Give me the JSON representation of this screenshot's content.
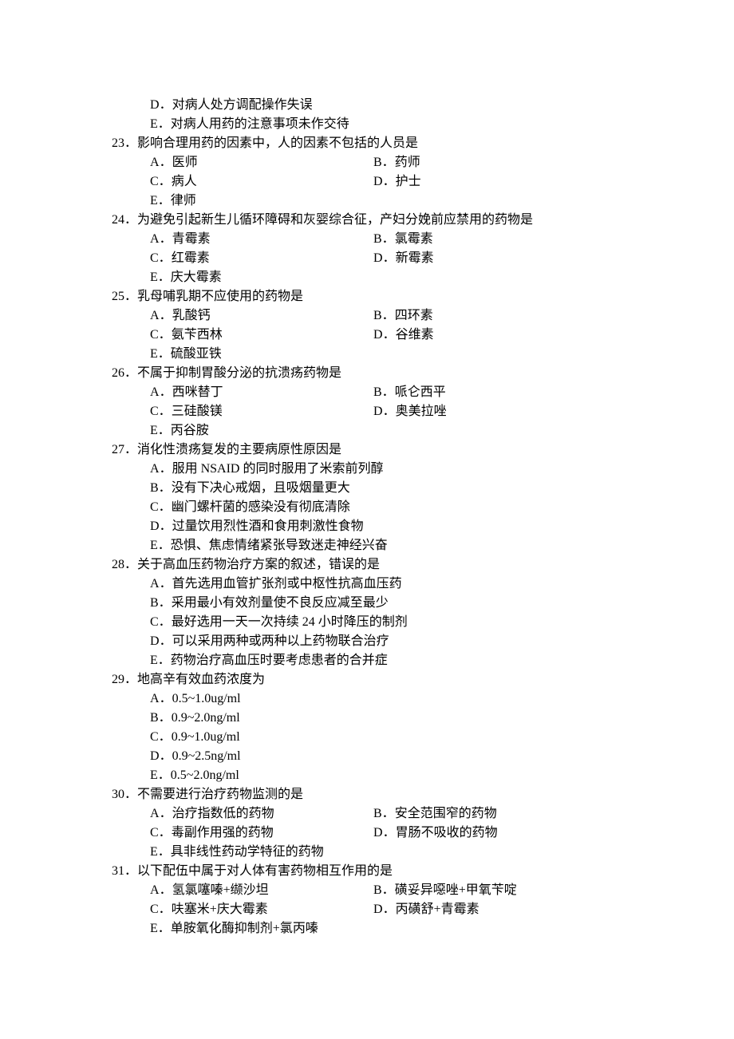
{
  "pre_options": [
    {
      "letter": "D",
      "text": "对病人处方调配操作失误"
    },
    {
      "letter": "E",
      "text": "对病人用药的注意事项未作交待"
    }
  ],
  "questions": [
    {
      "num": "23",
      "stem": "影响合理用药的因素中，人的因素不包括的人员是",
      "layout": "two",
      "options": [
        {
          "letter": "A",
          "text": "医师"
        },
        {
          "letter": "B",
          "text": "药师"
        },
        {
          "letter": "C",
          "text": "病人"
        },
        {
          "letter": "D",
          "text": "护士"
        },
        {
          "letter": "E",
          "text": "律师"
        }
      ]
    },
    {
      "num": "24",
      "stem": "为避免引起新生儿循环障碍和灰婴综合征，产妇分娩前应禁用的药物是",
      "layout": "two",
      "options": [
        {
          "letter": "A",
          "text": "青霉素"
        },
        {
          "letter": "B",
          "text": "氯霉素"
        },
        {
          "letter": "C",
          "text": "红霉素"
        },
        {
          "letter": "D",
          "text": "新霉素"
        },
        {
          "letter": "E",
          "text": "庆大霉素"
        }
      ]
    },
    {
      "num": "25",
      "stem": "乳母哺乳期不应使用的药物是",
      "layout": "two",
      "options": [
        {
          "letter": "A",
          "text": "乳酸钙"
        },
        {
          "letter": "B",
          "text": "四环素"
        },
        {
          "letter": "C",
          "text": "氨苄西林"
        },
        {
          "letter": "D",
          "text": "谷维素"
        },
        {
          "letter": "E",
          "text": "硫酸亚铁"
        }
      ]
    },
    {
      "num": "26",
      "stem": "不属于抑制胃酸分泌的抗溃疡药物是",
      "layout": "two",
      "options": [
        {
          "letter": "A",
          "text": "西咪替丁"
        },
        {
          "letter": "B",
          "text": "哌仑西平"
        },
        {
          "letter": "C",
          "text": "三硅酸镁"
        },
        {
          "letter": "D",
          "text": "奥美拉唑"
        },
        {
          "letter": "E",
          "text": "丙谷胺"
        }
      ]
    },
    {
      "num": "27",
      "stem": "消化性溃疡复发的主要病原性原因是",
      "layout": "one",
      "options": [
        {
          "letter": "A",
          "text": "服用 NSAID 的同时服用了米索前列醇"
        },
        {
          "letter": "B",
          "text": "没有下决心戒烟，且吸烟量更大"
        },
        {
          "letter": "C",
          "text": "幽门螺杆菌的感染没有彻底清除"
        },
        {
          "letter": "D",
          "text": "过量饮用烈性酒和食用刺激性食物"
        },
        {
          "letter": "E",
          "text": "恐惧、焦虑情绪紧张导致迷走神经兴奋"
        }
      ]
    },
    {
      "num": "28",
      "stem": "关于高血压药物治疗方案的叙述，错误的是",
      "layout": "one",
      "options": [
        {
          "letter": "A",
          "text": "首先选用血管扩张剂或中枢性抗高血压药"
        },
        {
          "letter": "B",
          "text": "采用最小有效剂量使不良反应减至最少"
        },
        {
          "letter": "C",
          "text": "最好选用一天一次持续 24 小时降压的制剂"
        },
        {
          "letter": "D",
          "text": "可以采用两种或两种以上药物联合治疗"
        },
        {
          "letter": "E",
          "text": "药物治疗高血压时要考虑患者的合并症"
        }
      ]
    },
    {
      "num": "29",
      "stem": "地高辛有效血药浓度为",
      "layout": "one",
      "options": [
        {
          "letter": "A",
          "text": "0.5~1.0ug/ml"
        },
        {
          "letter": "B",
          "text": "0.9~2.0ng/ml"
        },
        {
          "letter": "C",
          "text": "0.9~1.0ug/ml"
        },
        {
          "letter": "D",
          "text": "0.9~2.5ng/ml"
        },
        {
          "letter": "E",
          "text": "0.5~2.0ng/ml"
        }
      ]
    },
    {
      "num": "30",
      "stem": "不需要进行治疗药物监测的是",
      "layout": "two",
      "options": [
        {
          "letter": "A",
          "text": "治疗指数低的药物"
        },
        {
          "letter": "B",
          "text": "安全范围窄的药物"
        },
        {
          "letter": "C",
          "text": "毒副作用强的药物"
        },
        {
          "letter": "D",
          "text": "胃肠不吸收的药物"
        },
        {
          "letter": "E",
          "text": "具非线性药动学特征的药物"
        }
      ]
    },
    {
      "num": "31",
      "stem": "以下配伍中属于对人体有害药物相互作用的是",
      "layout": "two",
      "options": [
        {
          "letter": "A",
          "text": "氢氯噻嗪+缬沙坦"
        },
        {
          "letter": "B",
          "text": "磺妥异噁唑+甲氧苄啶"
        },
        {
          "letter": "C",
          "text": "呋塞米+庆大霉素"
        },
        {
          "letter": "D",
          "text": "丙磺舒+青霉素"
        },
        {
          "letter": "E",
          "text": "单胺氧化酶抑制剂+氯丙嗪"
        }
      ]
    }
  ]
}
